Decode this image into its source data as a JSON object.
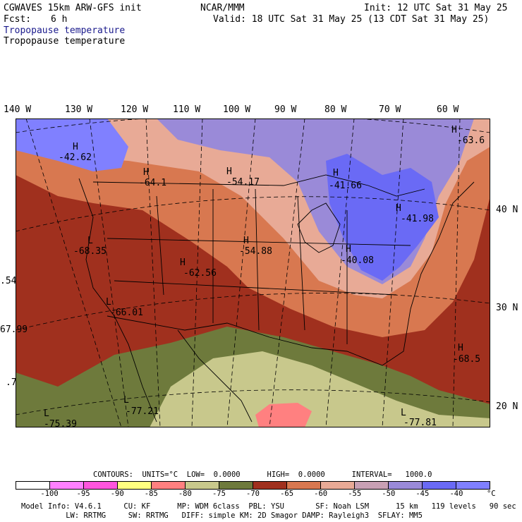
{
  "header": {
    "model": "CGWAVES 15km ARW-GFS init",
    "org": "NCAR/MMM",
    "init": "Init: 12 UTC Sat 31 May 25",
    "fcst_label": "Fcst:",
    "fcst_value": "6 h",
    "valid": "Valid: 18 UTC Sat 31 May 25 (13 CDT Sat 31 May 25)",
    "field_title_1": "Tropopause temperature",
    "field_title_2": "Tropopause temperature"
  },
  "axes": {
    "lon_labels": [
      "140 W",
      "130 W",
      "120 W",
      "110 W",
      "100 W",
      "90 W",
      "80 W",
      "70 W",
      "60 W"
    ],
    "lat_labels": [
      "40 N",
      "30 N",
      "20 N"
    ]
  },
  "map_labels": {
    "extrema": [
      {
        "kind": "H",
        "value": "-42.62"
      },
      {
        "kind": "H",
        "value": "-64.1"
      },
      {
        "kind": "H",
        "value": "-54.17"
      },
      {
        "kind": "H",
        "value": "-41.66"
      },
      {
        "kind": "H",
        "value": "-41.98"
      },
      {
        "kind": "H",
        "value": "-63.6"
      },
      {
        "kind": "L",
        "value": "-68.35"
      },
      {
        "kind": "H",
        "value": "-62.56"
      },
      {
        "kind": "H",
        "value": "-54.88"
      },
      {
        "kind": "H",
        "value": "-40.08"
      },
      {
        "kind": "",
        "value": ".54"
      },
      {
        "kind": "L",
        "value": "-66.01"
      },
      {
        "kind": "",
        "value": "67.99"
      },
      {
        "kind": "H",
        "value": "-68.5"
      },
      {
        "kind": "",
        "value": ".7"
      },
      {
        "kind": "L",
        "value": "-77.21"
      },
      {
        "kind": "L",
        "value": "-75.39"
      },
      {
        "kind": "L",
        "value": "-77.81"
      }
    ]
  },
  "legend_info": {
    "contours_line": "CONTOURS:  UNITS=°C  LOW=  0.0000      HIGH=  0.0000      INTERVAL=   1000.0",
    "ticks": [
      "-100",
      "-95",
      "-90",
      "-85",
      "-80",
      "-75",
      "-70",
      "-65",
      "-60",
      "-55",
      "-50",
      "-45",
      "-40",
      "°C"
    ],
    "colors": [
      "#ffffff",
      "#ff80ff",
      "#ff55dd",
      "#ffff80",
      "#ff8080",
      "#c8c88c",
      "#6e7a3c",
      "#a0301e",
      "#d87850",
      "#e8aa96",
      "#c8a0b4",
      "#9a8ad8",
      "#6a6af5",
      "#8080ff"
    ]
  },
  "footer": {
    "line1": "Model Info: V4.6.1     CU: KF      MP: WDM 6class  PBL: YSU       SF: Noah LSM      15 km   119 levels   90 sec",
    "line2": "          LW: RRTMG     SW: RRTMG   DIFF: simple KM: 2D Smagor DAMP: Rayleigh3  SFLAY: MM5"
  }
}
